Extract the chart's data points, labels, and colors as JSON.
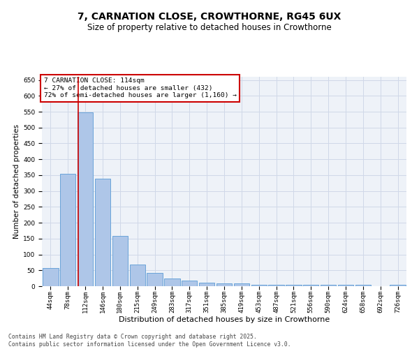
{
  "title_line1": "7, CARNATION CLOSE, CROWTHORNE, RG45 6UX",
  "title_line2": "Size of property relative to detached houses in Crowthorne",
  "xlabel": "Distribution of detached houses by size in Crowthorne",
  "ylabel": "Number of detached properties",
  "categories": [
    "44sqm",
    "78sqm",
    "112sqm",
    "146sqm",
    "180sqm",
    "215sqm",
    "249sqm",
    "283sqm",
    "317sqm",
    "351sqm",
    "385sqm",
    "419sqm",
    "453sqm",
    "487sqm",
    "521sqm",
    "556sqm",
    "590sqm",
    "624sqm",
    "658sqm",
    "692sqm",
    "726sqm"
  ],
  "values": [
    58,
    355,
    547,
    338,
    158,
    68,
    42,
    25,
    18,
    10,
    8,
    8,
    4,
    4,
    4,
    4,
    4,
    4,
    4,
    1,
    4
  ],
  "bar_color": "#aec6e8",
  "bar_edge_color": "#5b9bd5",
  "vline_color": "#cc0000",
  "vline_x": 1.575,
  "annotation_box_text": "7 CARNATION CLOSE: 114sqm\n← 27% of detached houses are smaller (432)\n72% of semi-detached houses are larger (1,160) →",
  "annotation_box_edgecolor": "#cc0000",
  "grid_color": "#d0d8e8",
  "background_color": "#eef2f8",
  "ylim": [
    0,
    660
  ],
  "yticks": [
    0,
    50,
    100,
    150,
    200,
    250,
    300,
    350,
    400,
    450,
    500,
    550,
    600,
    650
  ],
  "footer_line1": "Contains HM Land Registry data © Crown copyright and database right 2025.",
  "footer_line2": "Contains public sector information licensed under the Open Government Licence v3.0.",
  "title_fontsize": 10,
  "subtitle_fontsize": 8.5,
  "xlabel_fontsize": 8,
  "ylabel_fontsize": 7.5,
  "tick_fontsize": 6.5,
  "annotation_fontsize": 6.8,
  "footer_fontsize": 5.8
}
